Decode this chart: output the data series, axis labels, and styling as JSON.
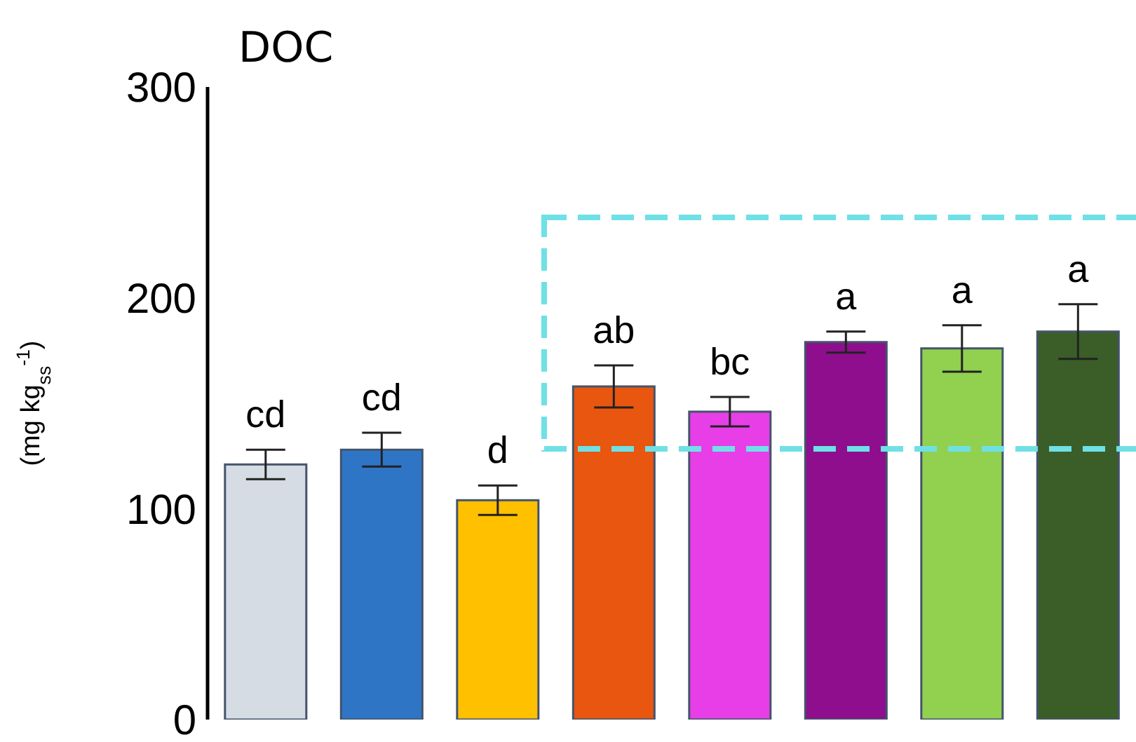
{
  "chart_data": {
    "type": "bar",
    "title": "DOC",
    "ylabel": "(mg kg$_{ss}$$^{-1}$)",
    "categories": [
      null,
      null,
      null,
      null,
      null,
      null,
      null,
      null
    ],
    "values": [
      121,
      128,
      104,
      158,
      146,
      179,
      176,
      184
    ],
    "errors": [
      7,
      8,
      7,
      10,
      7,
      5,
      11,
      13
    ],
    "value_labels": [
      "cd",
      "cd",
      "d",
      "ab",
      "bc",
      "a",
      "a",
      "a"
    ],
    "colors": [
      "#d6dce4",
      "#2e75c6",
      "#ffc000",
      "#e8560f",
      "#e83ee8",
      "#8e0e8e",
      "#92d050",
      "#3b5e28"
    ],
    "ylim": [
      0,
      300
    ],
    "yticks": [
      0,
      100,
      200,
      300
    ],
    "tick_labels": "y"
  }
}
